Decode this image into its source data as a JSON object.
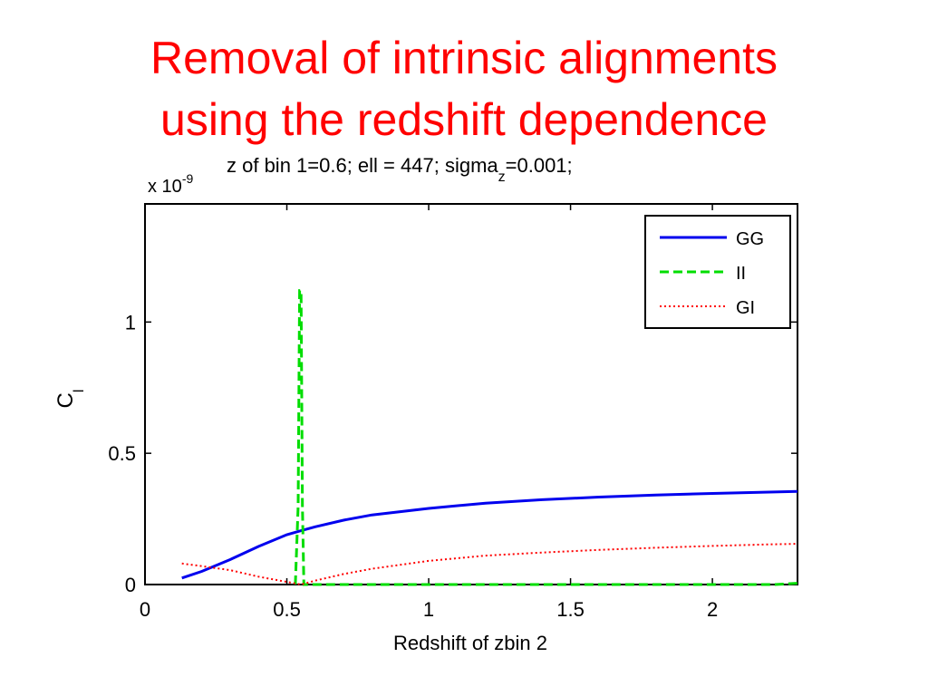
{
  "slide": {
    "title_line_1": "Removal of intrinsic alignments",
    "title_line_2": "using the redshift dependence"
  },
  "chart_data": {
    "type": "line",
    "title_main": "z of bin 1=0.6; ell = 447; sigma",
    "title_sub": "z",
    "title_end": "=0.001;",
    "xlabel": "Redshift of zbin 2",
    "ylabel_main": "C",
    "ylabel_sub": "l",
    "y_multiplier_prefix": "x 10",
    "y_multiplier_exp": "-9",
    "xlim": [
      0,
      2.3
    ],
    "ylim": [
      0,
      1.45
    ],
    "x_ticks": [
      0,
      0.5,
      1,
      1.5,
      2
    ],
    "x_tick_labels": [
      "0",
      "0.5",
      "1",
      "1.5",
      "2"
    ],
    "y_ticks": [
      0,
      0.5,
      1
    ],
    "y_tick_labels": [
      "0",
      "0.5",
      "1"
    ],
    "grid": false,
    "legend_position": "top-right",
    "series": [
      {
        "name": "GG",
        "color": "#0000ee",
        "style": "solid",
        "x": [
          0.13,
          0.2,
          0.3,
          0.4,
          0.5,
          0.55,
          0.6,
          0.7,
          0.8,
          1.0,
          1.2,
          1.4,
          1.6,
          1.8,
          2.0,
          2.2,
          2.3
        ],
        "y": [
          0.025,
          0.05,
          0.095,
          0.145,
          0.19,
          0.205,
          0.22,
          0.245,
          0.265,
          0.29,
          0.31,
          0.323,
          0.333,
          0.341,
          0.347,
          0.352,
          0.355
        ]
      },
      {
        "name": "II",
        "color": "#00dd00",
        "style": "dashed",
        "x": [
          0.53,
          0.54,
          0.545,
          0.55,
          0.555,
          0.56,
          0.57,
          2.22,
          2.3
        ],
        "y": [
          0,
          0.3,
          1.12,
          1.12,
          0.3,
          0.0,
          0,
          0,
          0.005
        ]
      },
      {
        "name": "GI",
        "color": "#ff0000",
        "style": "dotted",
        "x": [
          0.13,
          0.2,
          0.3,
          0.4,
          0.5,
          0.55,
          0.6,
          0.7,
          0.8,
          1.0,
          1.2,
          1.4,
          1.6,
          1.8,
          2.0,
          2.2,
          2.3
        ],
        "y": [
          0.08,
          0.07,
          0.055,
          0.03,
          0.01,
          0.0,
          0.015,
          0.04,
          0.06,
          0.09,
          0.11,
          0.122,
          0.132,
          0.14,
          0.147,
          0.153,
          0.155
        ]
      }
    ]
  }
}
